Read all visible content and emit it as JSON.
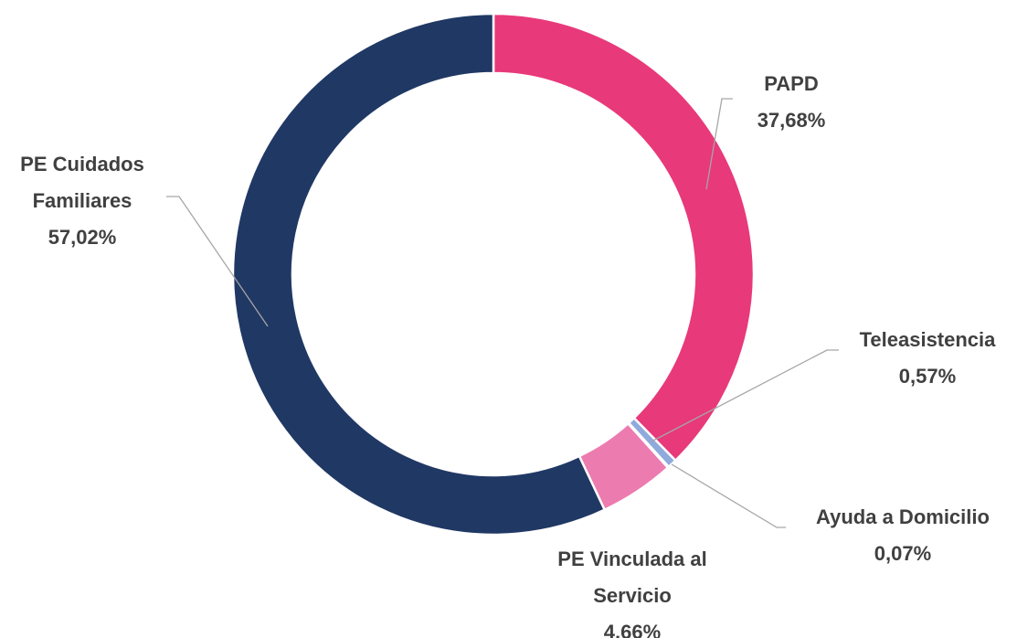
{
  "chart_data": {
    "type": "donut",
    "categories": [
      "PAPD",
      "Teleasistencia",
      "Ayuda a Domicilio",
      "PE Vinculada al Servicio",
      "PE Cuidados Familiares"
    ],
    "values": [
      37.68,
      0.57,
      0.07,
      4.66,
      57.02
    ],
    "value_labels": [
      "37,68%",
      "0,57%",
      "0,07%",
      "4,66%",
      "57,02%"
    ],
    "colors": [
      "#e8397a",
      "#8faadc",
      "#4472c4",
      "#ec7bb0",
      "#203864"
    ]
  }
}
